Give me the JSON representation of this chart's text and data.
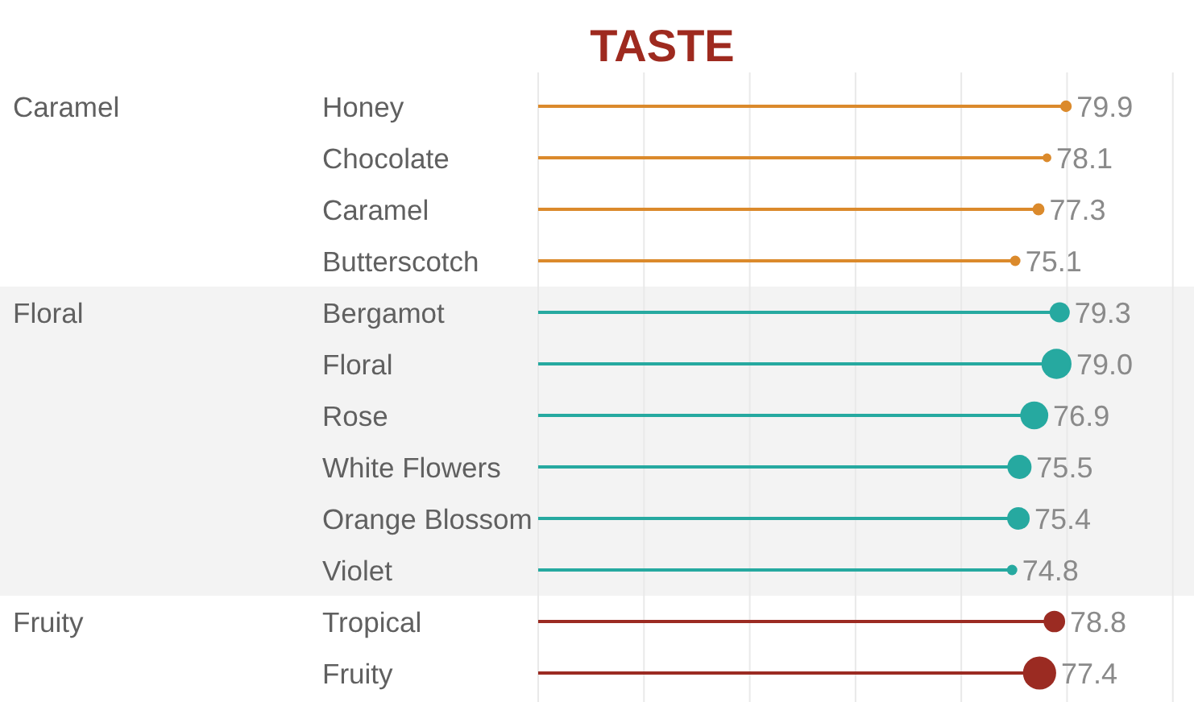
{
  "chart_data": {
    "type": "lollipop",
    "title": "TASTE",
    "orientation": "horizontal",
    "categories": [
      "Honey",
      "Chocolate",
      "Caramel",
      "Butterscotch",
      "Bergamot",
      "Floral",
      "Rose",
      "White Flowers",
      "Orange Blossom",
      "Violet",
      "Tropical",
      "Fruity"
    ],
    "series": [
      {
        "color": "#db8a2c",
        "values": [
          79.9,
          78.1,
          77.3,
          75.1,
          null,
          null,
          null,
          null,
          null,
          null,
          null,
          null
        ],
        "sizes": [
          0.12,
          0.07,
          0.13,
          0.1,
          null,
          null,
          null,
          null,
          null,
          null,
          null,
          null
        ],
        "value_labels": [
          "79.9",
          "78.1",
          "77.3",
          "75.1",
          null,
          null,
          null,
          null,
          null,
          null,
          null,
          null
        ]
      },
      {
        "color": "#26a9a0",
        "values": [
          null,
          null,
          null,
          null,
          79.3,
          79.0,
          76.9,
          75.5,
          75.4,
          74.8,
          null,
          null
        ],
        "sizes": [
          null,
          null,
          null,
          null,
          0.37,
          0.82,
          0.71,
          0.53,
          0.46,
          0.1,
          null,
          null
        ],
        "value_labels": [
          null,
          null,
          null,
          null,
          "79.3",
          "79.0",
          "76.9",
          "75.5",
          "75.4",
          "74.8",
          null,
          null
        ]
      },
      {
        "color": "#9b2b22",
        "values": [
          null,
          null,
          null,
          null,
          null,
          null,
          null,
          null,
          null,
          null,
          78.8,
          77.4
        ],
        "sizes": [
          null,
          null,
          null,
          null,
          null,
          null,
          null,
          null,
          null,
          null,
          0.42,
          1
        ],
        "value_labels": [
          null,
          null,
          null,
          null,
          null,
          null,
          null,
          null,
          null,
          null,
          "78.8",
          "77.4"
        ]
      }
    ],
    "annotations": [
      "Caramel",
      "Floral",
      "Fruity"
    ],
    "xlim": [
      30,
      92
    ],
    "xticks": [
      30,
      40,
      50,
      60,
      70,
      80,
      90
    ],
    "tick_labels": "y",
    "grid": "x",
    "bands": [
      {
        "axis": "y",
        "from": "Bergamot",
        "to": "Violet",
        "color": "#f3f3f3"
      }
    ]
  }
}
